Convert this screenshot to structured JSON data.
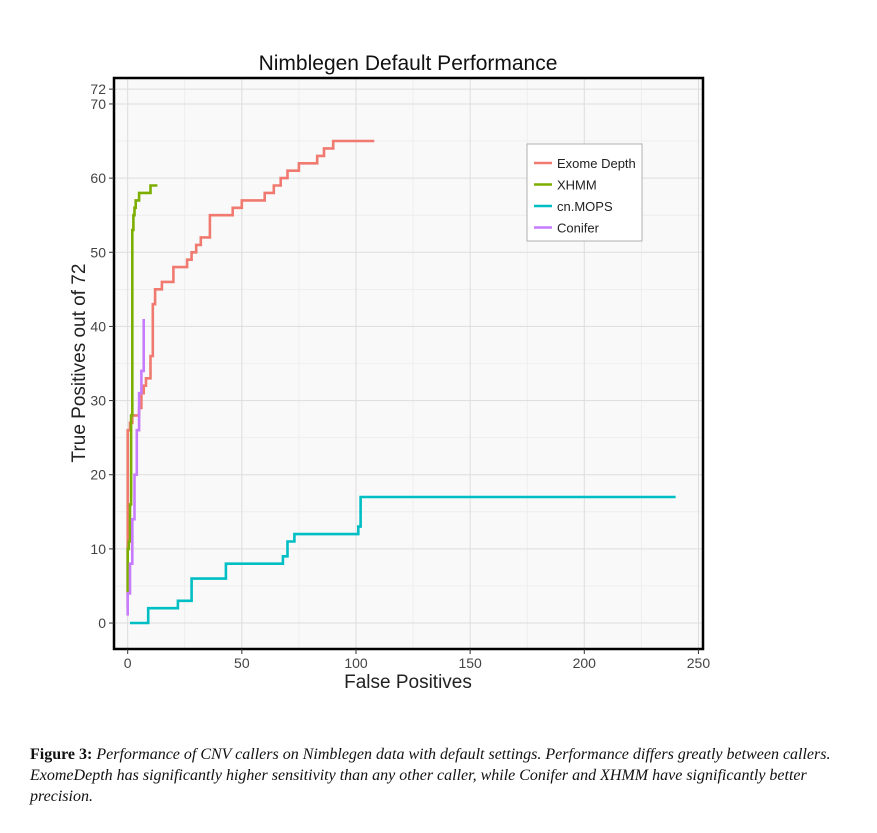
{
  "chart_data": {
    "type": "line",
    "title": "Nimblegen Default Performance",
    "xlabel": "False Positives",
    "ylabel": "True Positives out of 72",
    "xlim": [
      -6,
      252
    ],
    "ylim": [
      -3.5,
      73.5
    ],
    "x_ticks": [
      0,
      50,
      100,
      150,
      200,
      250
    ],
    "y_ticks": [
      0,
      10,
      20,
      30,
      40,
      50,
      60,
      70,
      72
    ],
    "grid": true,
    "legend_position": "top-right",
    "series": [
      {
        "name": "Exome Depth",
        "color": "#f07a70",
        "x": [
          0,
          0,
          0,
          1,
          1,
          2,
          2,
          4,
          4,
          5,
          5,
          6,
          6,
          7,
          7,
          8,
          8,
          10,
          10,
          11,
          11,
          12,
          12,
          15,
          15,
          20,
          20,
          26,
          26,
          28,
          28,
          30,
          30,
          32,
          32,
          36,
          36,
          40,
          40,
          46,
          46,
          50,
          50,
          60,
          60,
          64,
          64,
          67,
          67,
          70,
          70,
          75,
          75,
          80,
          80,
          83,
          83,
          86,
          86,
          90,
          90,
          108
        ],
        "y": [
          2,
          16,
          26,
          26,
          27,
          27,
          28,
          28,
          28,
          28,
          29,
          29,
          31,
          31,
          32,
          32,
          33,
          33,
          36,
          36,
          43,
          43,
          45,
          45,
          46,
          46,
          48,
          48,
          49,
          49,
          50,
          50,
          51,
          51,
          52,
          52,
          55,
          55,
          55,
          55,
          56,
          56,
          57,
          57,
          58,
          58,
          59,
          59,
          60,
          60,
          61,
          61,
          62,
          62,
          62,
          62,
          63,
          63,
          64,
          64,
          65,
          65
        ]
      },
      {
        "name": "XHMM",
        "color": "#7cae00",
        "x": [
          0,
          0,
          0.5,
          0.5,
          1,
          1,
          1.5,
          1.5,
          2,
          2,
          2.5,
          2.5,
          3,
          3,
          3.5,
          3.5,
          4,
          4,
          5,
          5,
          6,
          6,
          7,
          7,
          10,
          10,
          13
        ],
        "y": [
          4,
          10,
          10,
          11,
          11,
          16,
          16,
          28,
          28,
          53,
          53,
          55,
          55,
          56,
          56,
          57,
          57,
          57,
          57,
          58,
          58,
          58,
          58,
          58,
          58,
          59,
          59
        ]
      },
      {
        "name": "cn.MOPS",
        "color": "#00bfc4",
        "x": [
          1,
          9,
          9,
          22,
          22,
          28,
          28,
          43,
          43,
          68,
          68,
          70,
          70,
          73,
          73,
          101,
          101,
          102,
          102,
          103,
          103,
          240
        ],
        "y": [
          0,
          0,
          2,
          2,
          3,
          3,
          6,
          6,
          8,
          8,
          9,
          9,
          11,
          11,
          12,
          12,
          13,
          13,
          17,
          17,
          17,
          17
        ]
      },
      {
        "name": "Conifer",
        "color": "#c77cff",
        "x": [
          0,
          0,
          0.5,
          0.5,
          1,
          1,
          2,
          2,
          3,
          3,
          4,
          4,
          5,
          5,
          6,
          6,
          7,
          7
        ],
        "y": [
          1,
          4,
          4,
          4,
          4,
          8,
          8,
          14,
          14,
          20,
          20,
          26,
          26,
          31,
          31,
          34,
          34,
          41
        ]
      }
    ]
  },
  "caption": {
    "label": "Figure 3:",
    "text": " Performance of CNV callers on Nimblegen data with default settings. Performance differs greatly between callers. ExomeDepth has significantly higher sensitivity than any other caller, while Conifer and XHMM  have significantly better precision."
  }
}
